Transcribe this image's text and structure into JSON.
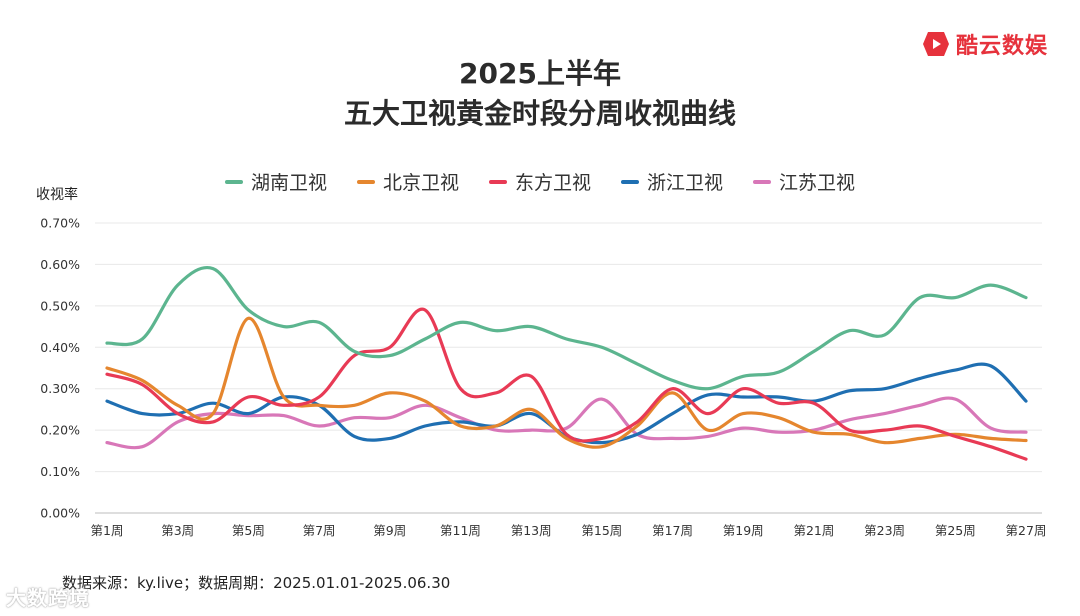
{
  "brand": {
    "name": "酷云数娱",
    "color": "#e6323c"
  },
  "footer": {
    "source": "数据来源：ky.live；数据周期：2025.01.01-2025.06.30"
  },
  "watermark": {
    "text": "大数跨境"
  },
  "chart_data": {
    "type": "line",
    "title_line1": "2025上半年",
    "title_line2": "五大卫视黄金时段分周收视曲线",
    "ylabel": "收视率",
    "ylim": [
      0,
      0.7
    ],
    "yticks": [
      "0.00%",
      "0.10%",
      "0.20%",
      "0.30%",
      "0.40%",
      "0.50%",
      "0.60%",
      "0.70%"
    ],
    "grid": true,
    "legend_position": "top",
    "x": [
      "第1周",
      "第2周",
      "第3周",
      "第4周",
      "第5周",
      "第6周",
      "第7周",
      "第8周",
      "第9周",
      "第10周",
      "第11周",
      "第12周",
      "第13周",
      "第14周",
      "第15周",
      "第16周",
      "第17周",
      "第18周",
      "第19周",
      "第20周",
      "第21周",
      "第22周",
      "第23周",
      "第24周",
      "第25周",
      "第26周",
      "第27周"
    ],
    "xtick_labels": [
      "第1周",
      "",
      "第3周",
      "",
      "第5周",
      "",
      "第7周",
      "",
      "第9周",
      "",
      "第11周",
      "",
      "第13周",
      "",
      "第15周",
      "",
      "第17周",
      "",
      "第19周",
      "",
      "第21周",
      "",
      "第23周",
      "",
      "第25周",
      "",
      "第27周"
    ],
    "series": [
      {
        "name": "湖南卫视",
        "color": "#5cb58f",
        "values": [
          0.41,
          0.42,
          0.55,
          0.59,
          0.49,
          0.45,
          0.46,
          0.39,
          0.38,
          0.42,
          0.46,
          0.44,
          0.45,
          0.42,
          0.4,
          0.36,
          0.32,
          0.3,
          0.33,
          0.34,
          0.39,
          0.44,
          0.43,
          0.52,
          0.52,
          0.55,
          0.52
        ]
      },
      {
        "name": "北京卫视",
        "color": "#e5862e",
        "values": [
          0.35,
          0.32,
          0.26,
          0.24,
          0.47,
          0.28,
          0.26,
          0.26,
          0.29,
          0.27,
          0.21,
          0.21,
          0.25,
          0.18,
          0.16,
          0.21,
          0.29,
          0.2,
          0.24,
          0.23,
          0.195,
          0.19,
          0.17,
          0.18,
          0.19,
          0.18,
          0.175
        ]
      },
      {
        "name": "东方卫视",
        "color": "#e83a55",
        "values": [
          0.335,
          0.31,
          0.24,
          0.22,
          0.28,
          0.26,
          0.28,
          0.38,
          0.4,
          0.49,
          0.3,
          0.29,
          0.33,
          0.19,
          0.18,
          0.22,
          0.3,
          0.24,
          0.3,
          0.265,
          0.265,
          0.2,
          0.2,
          0.21,
          0.185,
          0.16,
          0.13
        ]
      },
      {
        "name": "浙江卫视",
        "color": "#1f6fb2",
        "values": [
          0.27,
          0.24,
          0.24,
          0.265,
          0.24,
          0.28,
          0.26,
          0.185,
          0.18,
          0.21,
          0.22,
          0.21,
          0.24,
          0.185,
          0.17,
          0.19,
          0.24,
          0.285,
          0.28,
          0.28,
          0.27,
          0.295,
          0.3,
          0.325,
          0.345,
          0.355,
          0.27
        ]
      },
      {
        "name": "江苏卫视",
        "color": "#d877b8",
        "values": [
          0.17,
          0.16,
          0.22,
          0.24,
          0.235,
          0.235,
          0.21,
          0.23,
          0.23,
          0.26,
          0.23,
          0.2,
          0.2,
          0.205,
          0.275,
          0.19,
          0.18,
          0.185,
          0.205,
          0.195,
          0.2,
          0.225,
          0.24,
          0.26,
          0.275,
          0.205,
          0.195
        ]
      }
    ]
  }
}
